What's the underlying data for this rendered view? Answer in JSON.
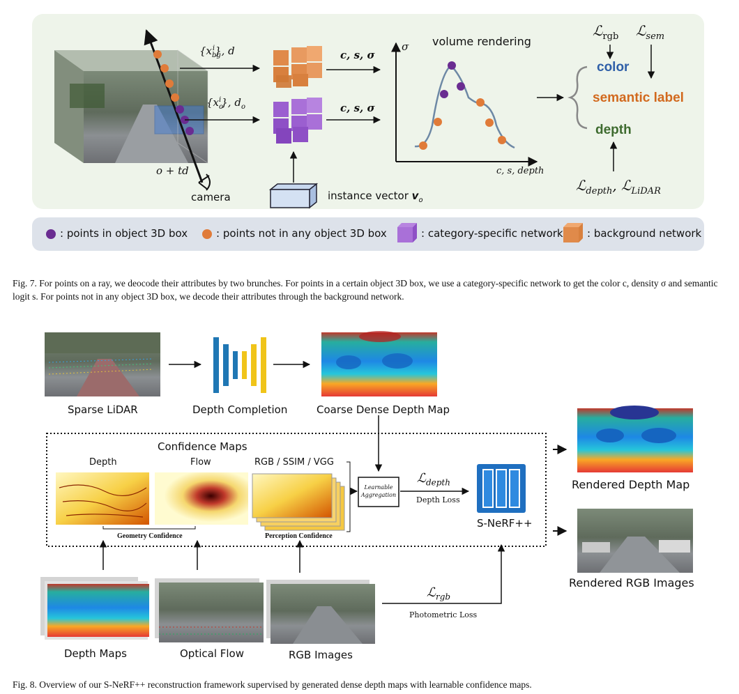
{
  "fig7": {
    "ray_bg_label": "{x_bg^i}, d",
    "ray_obj_label": "{x_o^i}, d_o",
    "output_bg": "c, s, σ",
    "output_obj": "c, s, σ",
    "ray_eq": "o + td",
    "camera": "camera",
    "instance_vector": "instance vector v_o",
    "volume_rendering": "volume rendering",
    "axis_sigma": "σ",
    "axis_x": "c, s, depth",
    "outputs": {
      "color": "color",
      "semantic": "semantic label",
      "depth": "depth"
    },
    "loss_rgb": "ℒrgb",
    "loss_sem": "ℒsem",
    "loss_depth": "ℒdepth, ℒLiDAR",
    "legend": {
      "purple_points": ": points in object 3D box",
      "orange_points": ": points not in any object 3D box",
      "purple_net": ": category-specific network",
      "orange_net": ": background network"
    },
    "colors": {
      "purple": "#6a2c91",
      "orange": "#e07b39",
      "color_word": "#2f5fa8",
      "semantic_word": "#d2691e",
      "depth_word": "#3e6b2f",
      "panel_bg": "#eef4ea",
      "legend_bg": "#dde2ea"
    },
    "caption": "Fig. 7.  For points on a ray, we deocode their attributes by two brunches. For points in a certain object 3D box, we use a category-specific network to get the color c, density σ and semantic logit s. For points not in any object 3D box, we decode their attributes through the background network."
  },
  "fig8": {
    "sparse_lidar": "Sparse LiDAR",
    "depth_completion": "Depth Completion",
    "coarse_depth": "Coarse Dense Depth Map",
    "confidence_maps": "Confidence Maps",
    "depth": "Depth",
    "flow": "Flow",
    "rgb_ssim_vgg": "RGB / SSIM / VGG",
    "geometry_conf": "Geometry Confidence",
    "perception_conf": "Perception Confidence",
    "learnable_agg": "Learnable Aggregation",
    "loss_depth": "ℒdepth",
    "depth_loss": "Depth Loss",
    "snerf": "S-NeRF++",
    "rendered_depth": "Rendered Depth Map",
    "rendered_rgb": "Rendered RGB Images",
    "loss_rgb": "ℒrgb",
    "photometric_loss": "Photometric Loss",
    "depth_maps": "Depth Maps",
    "optical_flow": "Optical Flow",
    "rgb_images": "RGB Images",
    "caption": "Fig. 8.  Overview of our S-NeRF++ reconstruction framework supervised by generated dense depth maps with learnable confidence maps."
  }
}
